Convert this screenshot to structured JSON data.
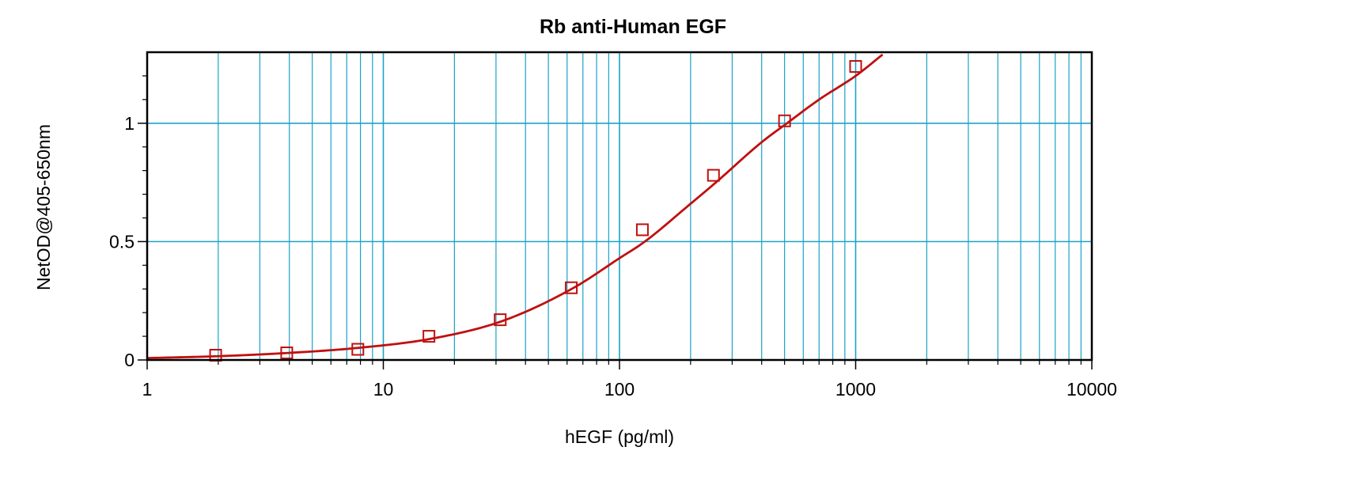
{
  "chart_data": {
    "type": "scatter",
    "title": "Rb anti-Human EGF",
    "xlabel": "hEGF (pg/ml)",
    "ylabel": "NetOD@405-650nm",
    "x_scale": "log",
    "xlim": [
      1,
      10000
    ],
    "ylim": [
      0,
      1.3
    ],
    "x_tick_labels": [
      "1",
      "10",
      "100",
      "1000",
      "10000"
    ],
    "x_tick_values": [
      1,
      10,
      100,
      1000,
      10000
    ],
    "y_tick_labels": [
      "0",
      "0.5",
      "1"
    ],
    "y_tick_values": [
      0,
      0.5,
      1
    ],
    "grid": true,
    "legend": "none",
    "colors": {
      "grid": "#1AA3C8",
      "series": "#C01010",
      "frame": "#000000"
    },
    "series": [
      {
        "marker": "open-square",
        "x": [
          1.95,
          3.9,
          7.8,
          15.6,
          31.25,
          62.5,
          125,
          250,
          500,
          1000
        ],
        "y": [
          0.02,
          0.03,
          0.045,
          0.1,
          0.17,
          0.305,
          0.55,
          0.78,
          1.01,
          1.24
        ]
      }
    ],
    "fit_curve": {
      "x": [
        1,
        2,
        4,
        8,
        16,
        32,
        64,
        100,
        128,
        200,
        256,
        400,
        512,
        700,
        1000,
        1300
      ],
      "y": [
        0.008,
        0.016,
        0.03,
        0.052,
        0.09,
        0.165,
        0.305,
        0.43,
        0.5,
        0.66,
        0.75,
        0.92,
        1.0,
        1.1,
        1.2,
        1.29
      ]
    }
  }
}
